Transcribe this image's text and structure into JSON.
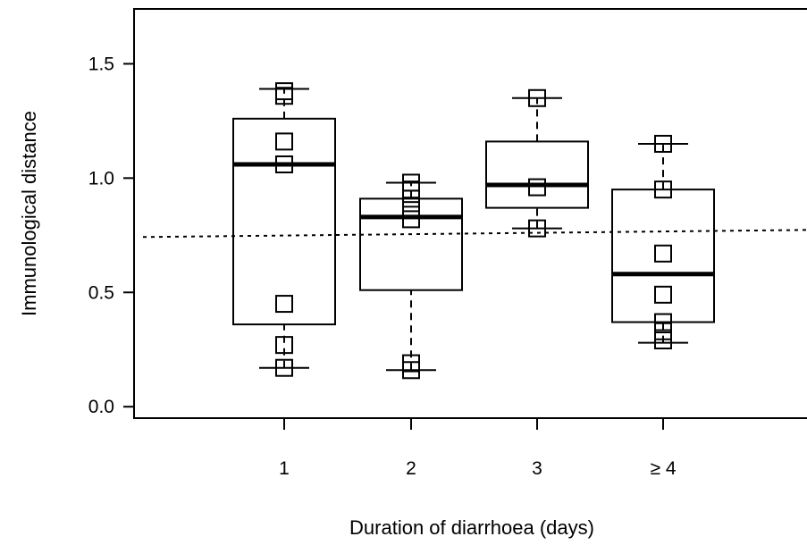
{
  "chart_data": {
    "type": "box",
    "xlabel": "Duration of diarrhoea (days)",
    "ylabel": "Immunological distance",
    "ylim": [
      -0.05,
      1.74
    ],
    "yticks": [
      0.0,
      0.5,
      1.0,
      1.5
    ],
    "ytick_labels": [
      "0.0",
      "0.5",
      "1.0",
      "1.5"
    ],
    "grid": false,
    "reference_line": {
      "y": 0.75,
      "style": "dotted"
    },
    "categories": [
      "1",
      "2",
      "3",
      "≥ 4"
    ],
    "boxes": [
      {
        "category": "1",
        "whisker_low": 0.17,
        "q1": 0.36,
        "median": 1.06,
        "q3": 1.26,
        "whisker_high": 1.39,
        "points": [
          0.17,
          0.27,
          0.45,
          1.06,
          1.16,
          1.36,
          1.38
        ]
      },
      {
        "category": "2",
        "whisker_low": 0.16,
        "q1": 0.51,
        "median": 0.83,
        "q3": 0.91,
        "whisker_high": 0.98,
        "points": [
          0.16,
          0.19,
          0.82,
          0.86,
          0.91,
          0.95,
          0.98
        ]
      },
      {
        "category": "3",
        "whisker_low": 0.78,
        "q1": 0.87,
        "median": 0.97,
        "q3": 1.16,
        "whisker_high": 1.35,
        "points": [
          0.78,
          0.96,
          1.35
        ]
      },
      {
        "category": "≥ 4",
        "whisker_low": 0.28,
        "q1": 0.37,
        "median": 0.58,
        "q3": 0.95,
        "whisker_high": 1.15,
        "points": [
          0.29,
          0.33,
          0.37,
          0.49,
          0.67,
          0.95,
          1.15
        ]
      }
    ]
  }
}
